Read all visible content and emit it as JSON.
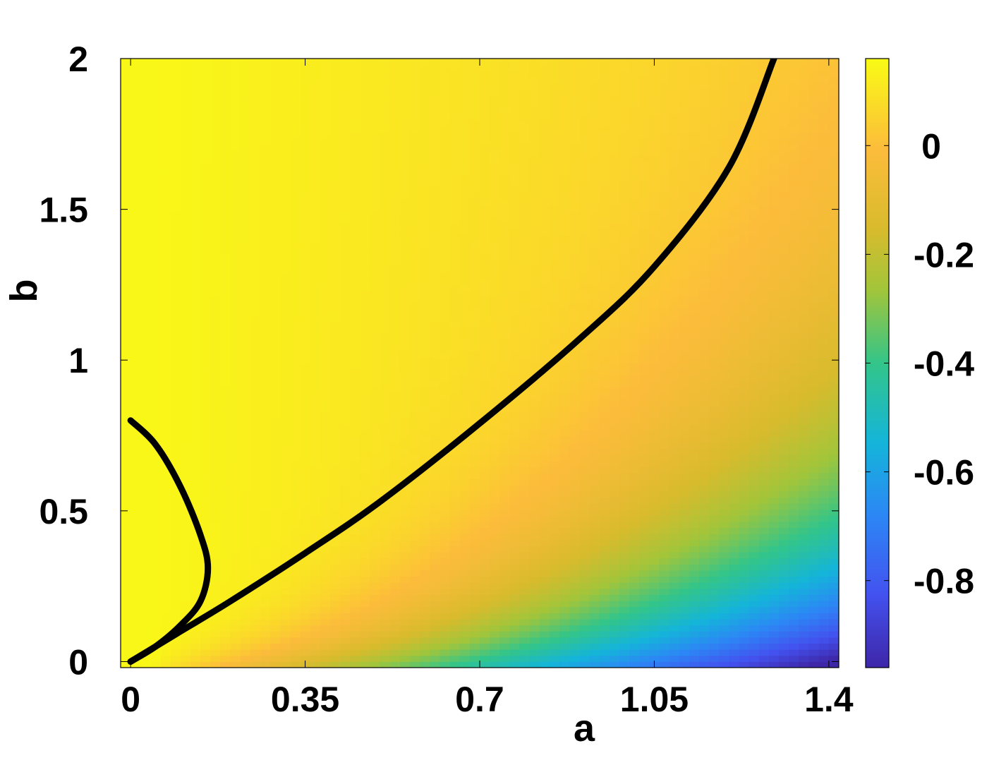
{
  "chart_data": {
    "type": "heatmap",
    "title": "",
    "xlabel": "a",
    "ylabel": "b",
    "xlim": [
      -0.02,
      1.42
    ],
    "ylim": [
      -0.02,
      2.0
    ],
    "x_ticks": [
      0,
      0.35,
      0.7,
      1.05,
      1.4
    ],
    "x_tick_labels": [
      "0",
      "0.35",
      "0.7",
      "1.05",
      "1.4"
    ],
    "y_ticks": [
      0,
      0.5,
      1,
      1.5,
      2
    ],
    "y_tick_labels": [
      "0",
      "0.5",
      "1",
      "1.5",
      "2"
    ],
    "colormap": "parula",
    "colorbar": {
      "range": [
        -0.96,
        0.16
      ],
      "ticks": [
        0,
        -0.2,
        -0.4,
        -0.6,
        -0.8
      ],
      "tick_labels": [
        "0",
        "-0.2",
        "-0.4",
        "-0.6",
        "-0.8"
      ]
    },
    "field_samples": {
      "description_of_values": "approximate colour value at sampled (a, b) points",
      "points": [
        {
          "a": 0.0,
          "b": 1.0,
          "value": 0.15
        },
        {
          "a": 0.7,
          "b": 1.5,
          "value": 0.05
        },
        {
          "a": 1.4,
          "b": 2.0,
          "value": 0.0
        },
        {
          "a": 1.4,
          "b": 1.0,
          "value": -0.08
        },
        {
          "a": 1.4,
          "b": 0.5,
          "value": -0.25
        },
        {
          "a": 1.4,
          "b": 0.1,
          "value": -0.6
        },
        {
          "a": 1.4,
          "b": 0.0,
          "value": -0.9
        },
        {
          "a": 0.7,
          "b": 0.0,
          "value": -0.5
        }
      ]
    },
    "series": [
      {
        "values_xy": [
          [
            0.0,
            0.8
          ],
          [
            0.05,
            0.72
          ],
          [
            0.1,
            0.58
          ],
          [
            0.14,
            0.42
          ],
          [
            0.155,
            0.31
          ],
          [
            0.14,
            0.2
          ],
          [
            0.1,
            0.12
          ],
          [
            0.05,
            0.05
          ],
          [
            0.0,
            0.0
          ]
        ]
      },
      {
        "values_xy": [
          [
            0.0,
            0.0
          ],
          [
            0.1,
            0.1
          ],
          [
            0.2,
            0.2
          ],
          [
            0.35,
            0.36
          ],
          [
            0.5,
            0.53
          ],
          [
            0.7,
            0.79
          ],
          [
            0.9,
            1.07
          ],
          [
            1.05,
            1.31
          ],
          [
            1.2,
            1.64
          ],
          [
            1.29,
            2.0
          ]
        ]
      }
    ]
  },
  "colors": {
    "curve": "#000000",
    "axes": "#000000",
    "background": "#ffffff"
  }
}
